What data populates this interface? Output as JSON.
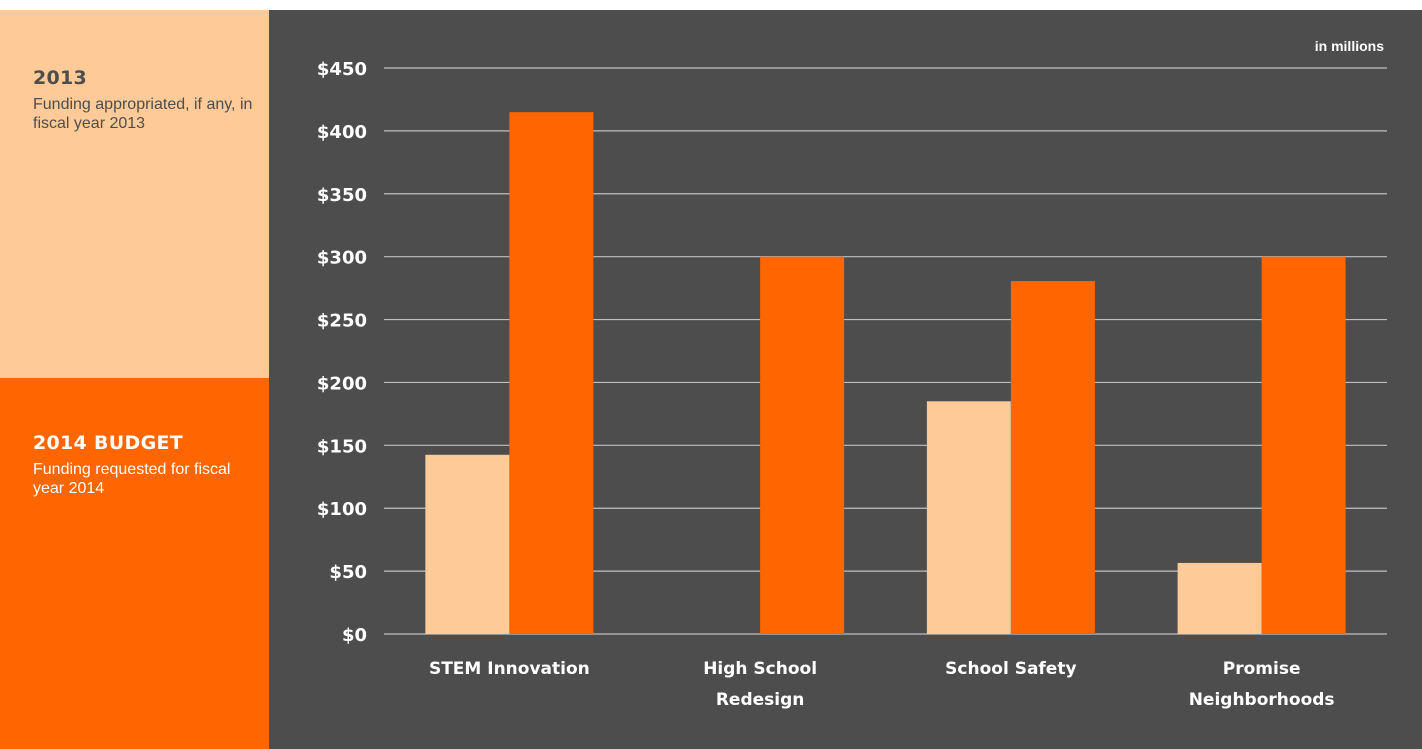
{
  "legend": {
    "series_2013": {
      "title": "2013",
      "description": "Funding appropriated, if any, in fiscal year 2013",
      "color": "#FECB98"
    },
    "series_2014": {
      "title": "2014 BUDGET",
      "description": "Funding requested for fiscal year 2014",
      "color": "#FF6600"
    }
  },
  "colors": {
    "chart_background": "#4D4D4D",
    "gridline": "#BFBFBF",
    "text": "#FFFFFF"
  },
  "chart_data": {
    "type": "bar",
    "units_note": "in millions",
    "categories": [
      [
        "STEM Innovation"
      ],
      [
        "High School",
        "Redesign"
      ],
      [
        "School Safety"
      ],
      [
        "Promise",
        "Neighborhoods"
      ]
    ],
    "series": [
      {
        "name": "2013",
        "values": [
          142.5,
          0,
          185,
          56.5
        ]
      },
      {
        "name": "2014 BUDGET",
        "values": [
          414.9,
          300,
          280.6,
          300
        ]
      }
    ],
    "ylim": [
      0,
      450
    ],
    "yticks": [
      0,
      50,
      100,
      150,
      200,
      250,
      300,
      350,
      400,
      450
    ],
    "ytick_labels": [
      "$0",
      "$50",
      "$100",
      "$150",
      "$200",
      "$250",
      "$300",
      "$350",
      "$400",
      "$450"
    ],
    "grid": true,
    "legend_position": "left"
  }
}
